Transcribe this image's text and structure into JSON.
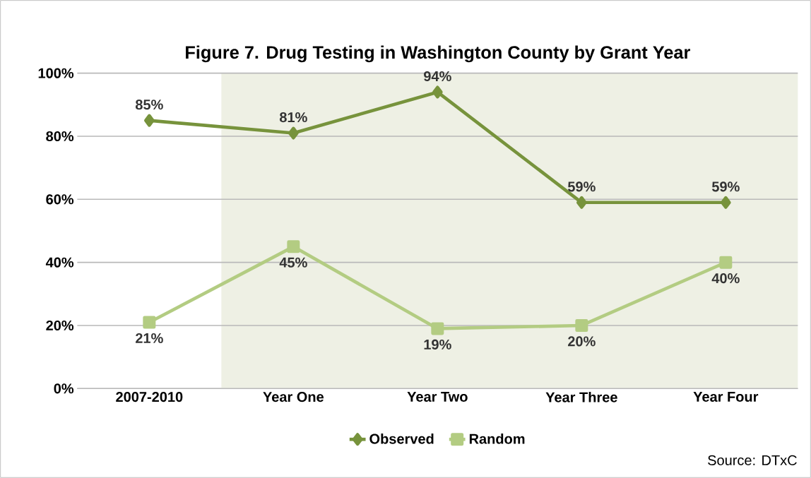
{
  "chart_data": {
    "type": "line",
    "title": "Figure 7. Drug Testing in Washington County by Grant Year",
    "categories": [
      "2007-2010",
      "Year One",
      "Year Two",
      "Year Three",
      "Year Four"
    ],
    "series": [
      {
        "name": "Observed",
        "color": "#77933c",
        "marker": "diamond",
        "values": [
          85,
          81,
          94,
          59,
          59
        ],
        "value_labels": [
          "85%",
          "81%",
          "94%",
          "59%",
          "59%"
        ]
      },
      {
        "name": "Random",
        "color": "#b3cc82",
        "marker": "square",
        "values": [
          21,
          45,
          19,
          20,
          40
        ],
        "value_labels": [
          "21%",
          "45%",
          "19%",
          "20%",
          "40%"
        ]
      }
    ],
    "ylim": [
      0,
      100
    ],
    "yticks": [
      {
        "value": 0,
        "label": "0%"
      },
      {
        "value": 20,
        "label": "20%"
      },
      {
        "value": 40,
        "label": "40%"
      },
      {
        "value": 60,
        "label": "60%"
      },
      {
        "value": 80,
        "label": "80%"
      },
      {
        "value": 100,
        "label": "100%"
      }
    ],
    "bands": [
      {
        "axis": "x",
        "from": "Year One",
        "to": "Year Four",
        "color": "#eef0e4"
      }
    ],
    "grid": "y",
    "legend": "bottom",
    "line_style": "solid",
    "annotations": [
      "Source: DTxC"
    ]
  }
}
